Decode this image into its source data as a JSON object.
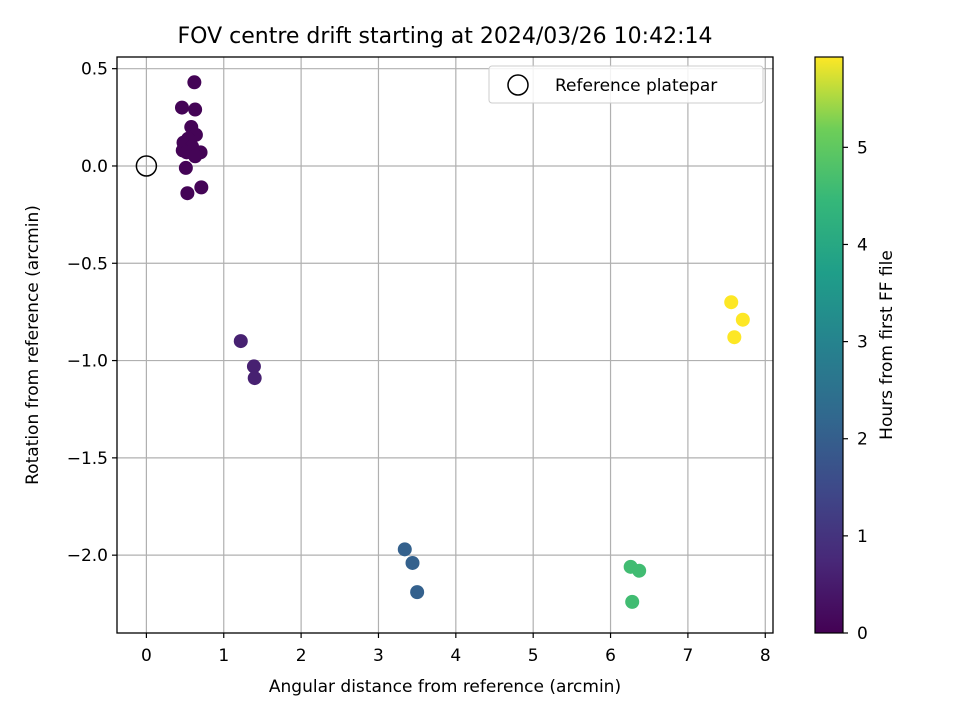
{
  "chart_data": {
    "type": "scatter",
    "title": "FOV centre drift starting at 2024/03/26 10:42:14",
    "xlabel": "Angular distance from reference (arcmin)",
    "ylabel": "Rotation from reference (arcmin)",
    "xlim": [
      -0.38,
      8.1
    ],
    "ylim": [
      -2.4,
      0.56
    ],
    "xticks": [
      0,
      1,
      2,
      3,
      4,
      5,
      6,
      7,
      8
    ],
    "xtick_labels": [
      "0",
      "1",
      "2",
      "3",
      "4",
      "5",
      "6",
      "7",
      "8"
    ],
    "yticks": [
      0.5,
      0.0,
      -0.5,
      -1.0,
      -1.5,
      -2.0
    ],
    "ytick_labels": [
      "0.5",
      "0.0",
      "−0.5",
      "−1.0",
      "−1.5",
      "−2.0"
    ],
    "grid": true,
    "legend": {
      "placement": "top-right",
      "entries": [
        "Reference platepar"
      ]
    },
    "reference_point": {
      "x": 0,
      "y": 0
    },
    "colorbar": {
      "label": "Hours from first FF file",
      "range": [
        0,
        5.93
      ],
      "ticks": [
        0,
        1,
        2,
        3,
        4,
        5
      ],
      "tick_labels": [
        "0",
        "1",
        "2",
        "3",
        "4",
        "5"
      ],
      "colormap": "viridis"
    },
    "points": [
      {
        "x": 0.62,
        "y": 0.43,
        "c": 0.05
      },
      {
        "x": 0.46,
        "y": 0.3,
        "c": 0.05
      },
      {
        "x": 0.63,
        "y": 0.29,
        "c": 0.05
      },
      {
        "x": 0.58,
        "y": 0.2,
        "c": 0.05
      },
      {
        "x": 0.64,
        "y": 0.16,
        "c": 0.05
      },
      {
        "x": 0.54,
        "y": 0.14,
        "c": 0.05
      },
      {
        "x": 0.48,
        "y": 0.12,
        "c": 0.05
      },
      {
        "x": 0.59,
        "y": 0.1,
        "c": 0.05
      },
      {
        "x": 0.47,
        "y": 0.08,
        "c": 0.05
      },
      {
        "x": 0.7,
        "y": 0.07,
        "c": 0.05
      },
      {
        "x": 0.52,
        "y": 0.07,
        "c": 0.05
      },
      {
        "x": 0.63,
        "y": 0.05,
        "c": 0.05
      },
      {
        "x": 0.51,
        "y": -0.01,
        "c": 0.05
      },
      {
        "x": 0.71,
        "y": -0.11,
        "c": 0.05
      },
      {
        "x": 0.53,
        "y": -0.14,
        "c": 0.05
      },
      {
        "x": 1.22,
        "y": -0.9,
        "c": 0.6
      },
      {
        "x": 1.39,
        "y": -1.03,
        "c": 0.6
      },
      {
        "x": 1.4,
        "y": -1.09,
        "c": 0.6
      },
      {
        "x": 3.34,
        "y": -1.97,
        "c": 2.05
      },
      {
        "x": 3.44,
        "y": -2.04,
        "c": 2.05
      },
      {
        "x": 3.5,
        "y": -2.19,
        "c": 2.05
      },
      {
        "x": 6.26,
        "y": -2.06,
        "c": 4.6
      },
      {
        "x": 6.37,
        "y": -2.08,
        "c": 4.6
      },
      {
        "x": 6.28,
        "y": -2.24,
        "c": 4.6
      },
      {
        "x": 7.56,
        "y": -0.7,
        "c": 5.93
      },
      {
        "x": 7.71,
        "y": -0.79,
        "c": 5.93
      },
      {
        "x": 7.6,
        "y": -0.88,
        "c": 5.93
      }
    ]
  }
}
